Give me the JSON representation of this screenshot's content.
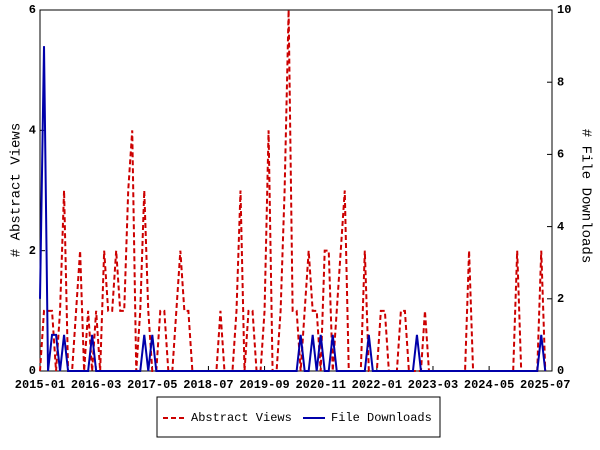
{
  "chart_data": {
    "type": "line",
    "x": [
      "2015-01",
      "2015-02",
      "2015-03",
      "2015-04",
      "2015-05",
      "2015-06",
      "2015-07",
      "2015-08",
      "2015-09",
      "2015-10",
      "2015-11",
      "2015-12",
      "2016-01",
      "2016-02",
      "2016-03",
      "2016-04",
      "2016-05",
      "2016-06",
      "2016-07",
      "2016-08",
      "2016-09",
      "2016-10",
      "2016-11",
      "2016-12",
      "2017-01",
      "2017-02",
      "2017-03",
      "2017-04",
      "2017-05",
      "2017-06",
      "2017-07",
      "2017-08",
      "2017-09",
      "2017-10",
      "2017-11",
      "2017-12",
      "2018-01",
      "2018-02",
      "2018-03",
      "2018-04",
      "2018-05",
      "2018-06",
      "2018-07",
      "2018-08",
      "2018-09",
      "2018-10",
      "2018-11",
      "2018-12",
      "2019-01",
      "2019-02",
      "2019-03",
      "2019-04",
      "2019-05",
      "2019-06",
      "2019-07",
      "2019-08",
      "2019-09",
      "2019-10",
      "2019-11",
      "2019-12",
      "2020-01",
      "2020-02",
      "2020-03",
      "2020-04",
      "2020-05",
      "2020-06",
      "2020-07",
      "2020-08",
      "2020-09",
      "2020-10",
      "2020-11",
      "2020-12",
      "2021-01",
      "2021-02",
      "2021-03",
      "2021-04",
      "2021-05",
      "2021-06",
      "2021-07",
      "2021-08",
      "2021-09",
      "2021-10",
      "2021-11",
      "2021-12",
      "2022-01",
      "2022-02",
      "2022-03",
      "2022-04",
      "2022-05",
      "2022-06",
      "2022-07",
      "2022-08",
      "2022-09",
      "2022-10",
      "2022-11",
      "2022-12",
      "2023-01",
      "2023-02",
      "2023-03",
      "2023-04",
      "2023-05",
      "2023-06",
      "2023-07",
      "2023-08",
      "2023-09",
      "2023-10",
      "2023-11",
      "2023-12",
      "2024-01",
      "2024-02",
      "2024-03",
      "2024-04",
      "2024-05",
      "2024-06",
      "2024-07",
      "2024-08",
      "2024-09",
      "2024-10",
      "2024-11",
      "2024-12",
      "2025-01",
      "2025-02",
      "2025-03",
      "2025-04",
      "2025-05",
      "2025-06",
      "2025-07"
    ],
    "xticks": [
      "2015-01",
      "2016-03",
      "2017-05",
      "2018-07",
      "2019-09",
      "2020-11",
      "2022-01",
      "2023-03",
      "2024-05",
      "2025-07"
    ],
    "ylabel": "# Abstract Views",
    "y2label": "# File Downloads",
    "ylim": [
      0,
      6
    ],
    "yticks": [
      0,
      2,
      4,
      6
    ],
    "y2lim": [
      0,
      10
    ],
    "y2ticks": [
      0,
      2,
      4,
      6,
      8,
      10
    ],
    "legend": "bottom",
    "series": [
      {
        "name": "Abstract Views",
        "color": "#cc0000",
        "line_style": "dashed",
        "values": [
          0,
          1,
          1,
          1,
          0,
          1,
          3,
          0,
          0,
          1,
          2,
          0,
          1,
          0,
          1,
          0,
          2,
          1,
          1,
          2,
          1,
          1,
          3,
          4,
          0,
          1,
          3,
          1,
          0,
          0,
          1,
          1,
          0,
          0,
          1,
          2,
          1,
          1,
          0,
          0,
          0,
          0,
          0,
          0,
          0,
          1,
          0,
          0,
          0,
          1,
          3,
          0,
          1,
          1,
          0,
          0,
          1,
          4,
          0,
          0,
          1,
          3,
          6,
          1,
          1,
          0,
          1,
          2,
          1,
          1,
          0,
          2,
          2,
          0,
          1,
          2,
          3,
          0,
          0,
          0,
          0,
          2,
          0,
          0,
          0,
          1,
          1,
          0,
          0,
          0,
          1,
          1,
          0,
          0,
          0,
          0,
          1,
          0,
          0,
          0,
          0,
          0,
          0,
          0,
          0,
          0,
          0,
          2,
          0,
          0,
          0,
          0,
          0,
          0,
          0,
          0,
          0,
          0,
          0,
          2,
          0,
          0,
          0,
          0,
          0,
          2,
          0
        ]
      },
      {
        "name": "File Downloads",
        "color": "#0000aa",
        "line_style": "solid",
        "axis": "y2",
        "values": [
          2,
          9,
          0,
          1,
          1,
          0,
          1,
          0,
          0,
          0,
          0,
          0,
          0,
          1,
          0,
          0,
          0,
          0,
          0,
          0,
          0,
          0,
          0,
          0,
          0,
          0,
          1,
          0,
          1,
          0,
          0,
          0,
          0,
          0,
          0,
          0,
          0,
          0,
          0,
          0,
          0,
          0,
          0,
          0,
          0,
          0,
          0,
          0,
          0,
          0,
          0,
          0,
          0,
          0,
          0,
          0,
          0,
          0,
          0,
          0,
          0,
          0,
          0,
          0,
          0,
          1,
          0,
          0,
          1,
          0,
          1,
          0,
          0,
          1,
          0,
          0,
          0,
          0,
          0,
          0,
          0,
          0,
          1,
          0,
          0,
          0,
          0,
          0,
          0,
          0,
          0,
          0,
          0,
          0,
          1,
          0,
          0,
          0,
          0,
          0,
          0,
          0,
          0,
          0,
          0,
          0,
          0,
          0,
          0,
          0,
          0,
          0,
          0,
          0,
          0,
          0,
          0,
          0,
          0,
          0,
          0,
          0,
          0,
          0,
          0,
          1,
          0
        ]
      }
    ]
  }
}
